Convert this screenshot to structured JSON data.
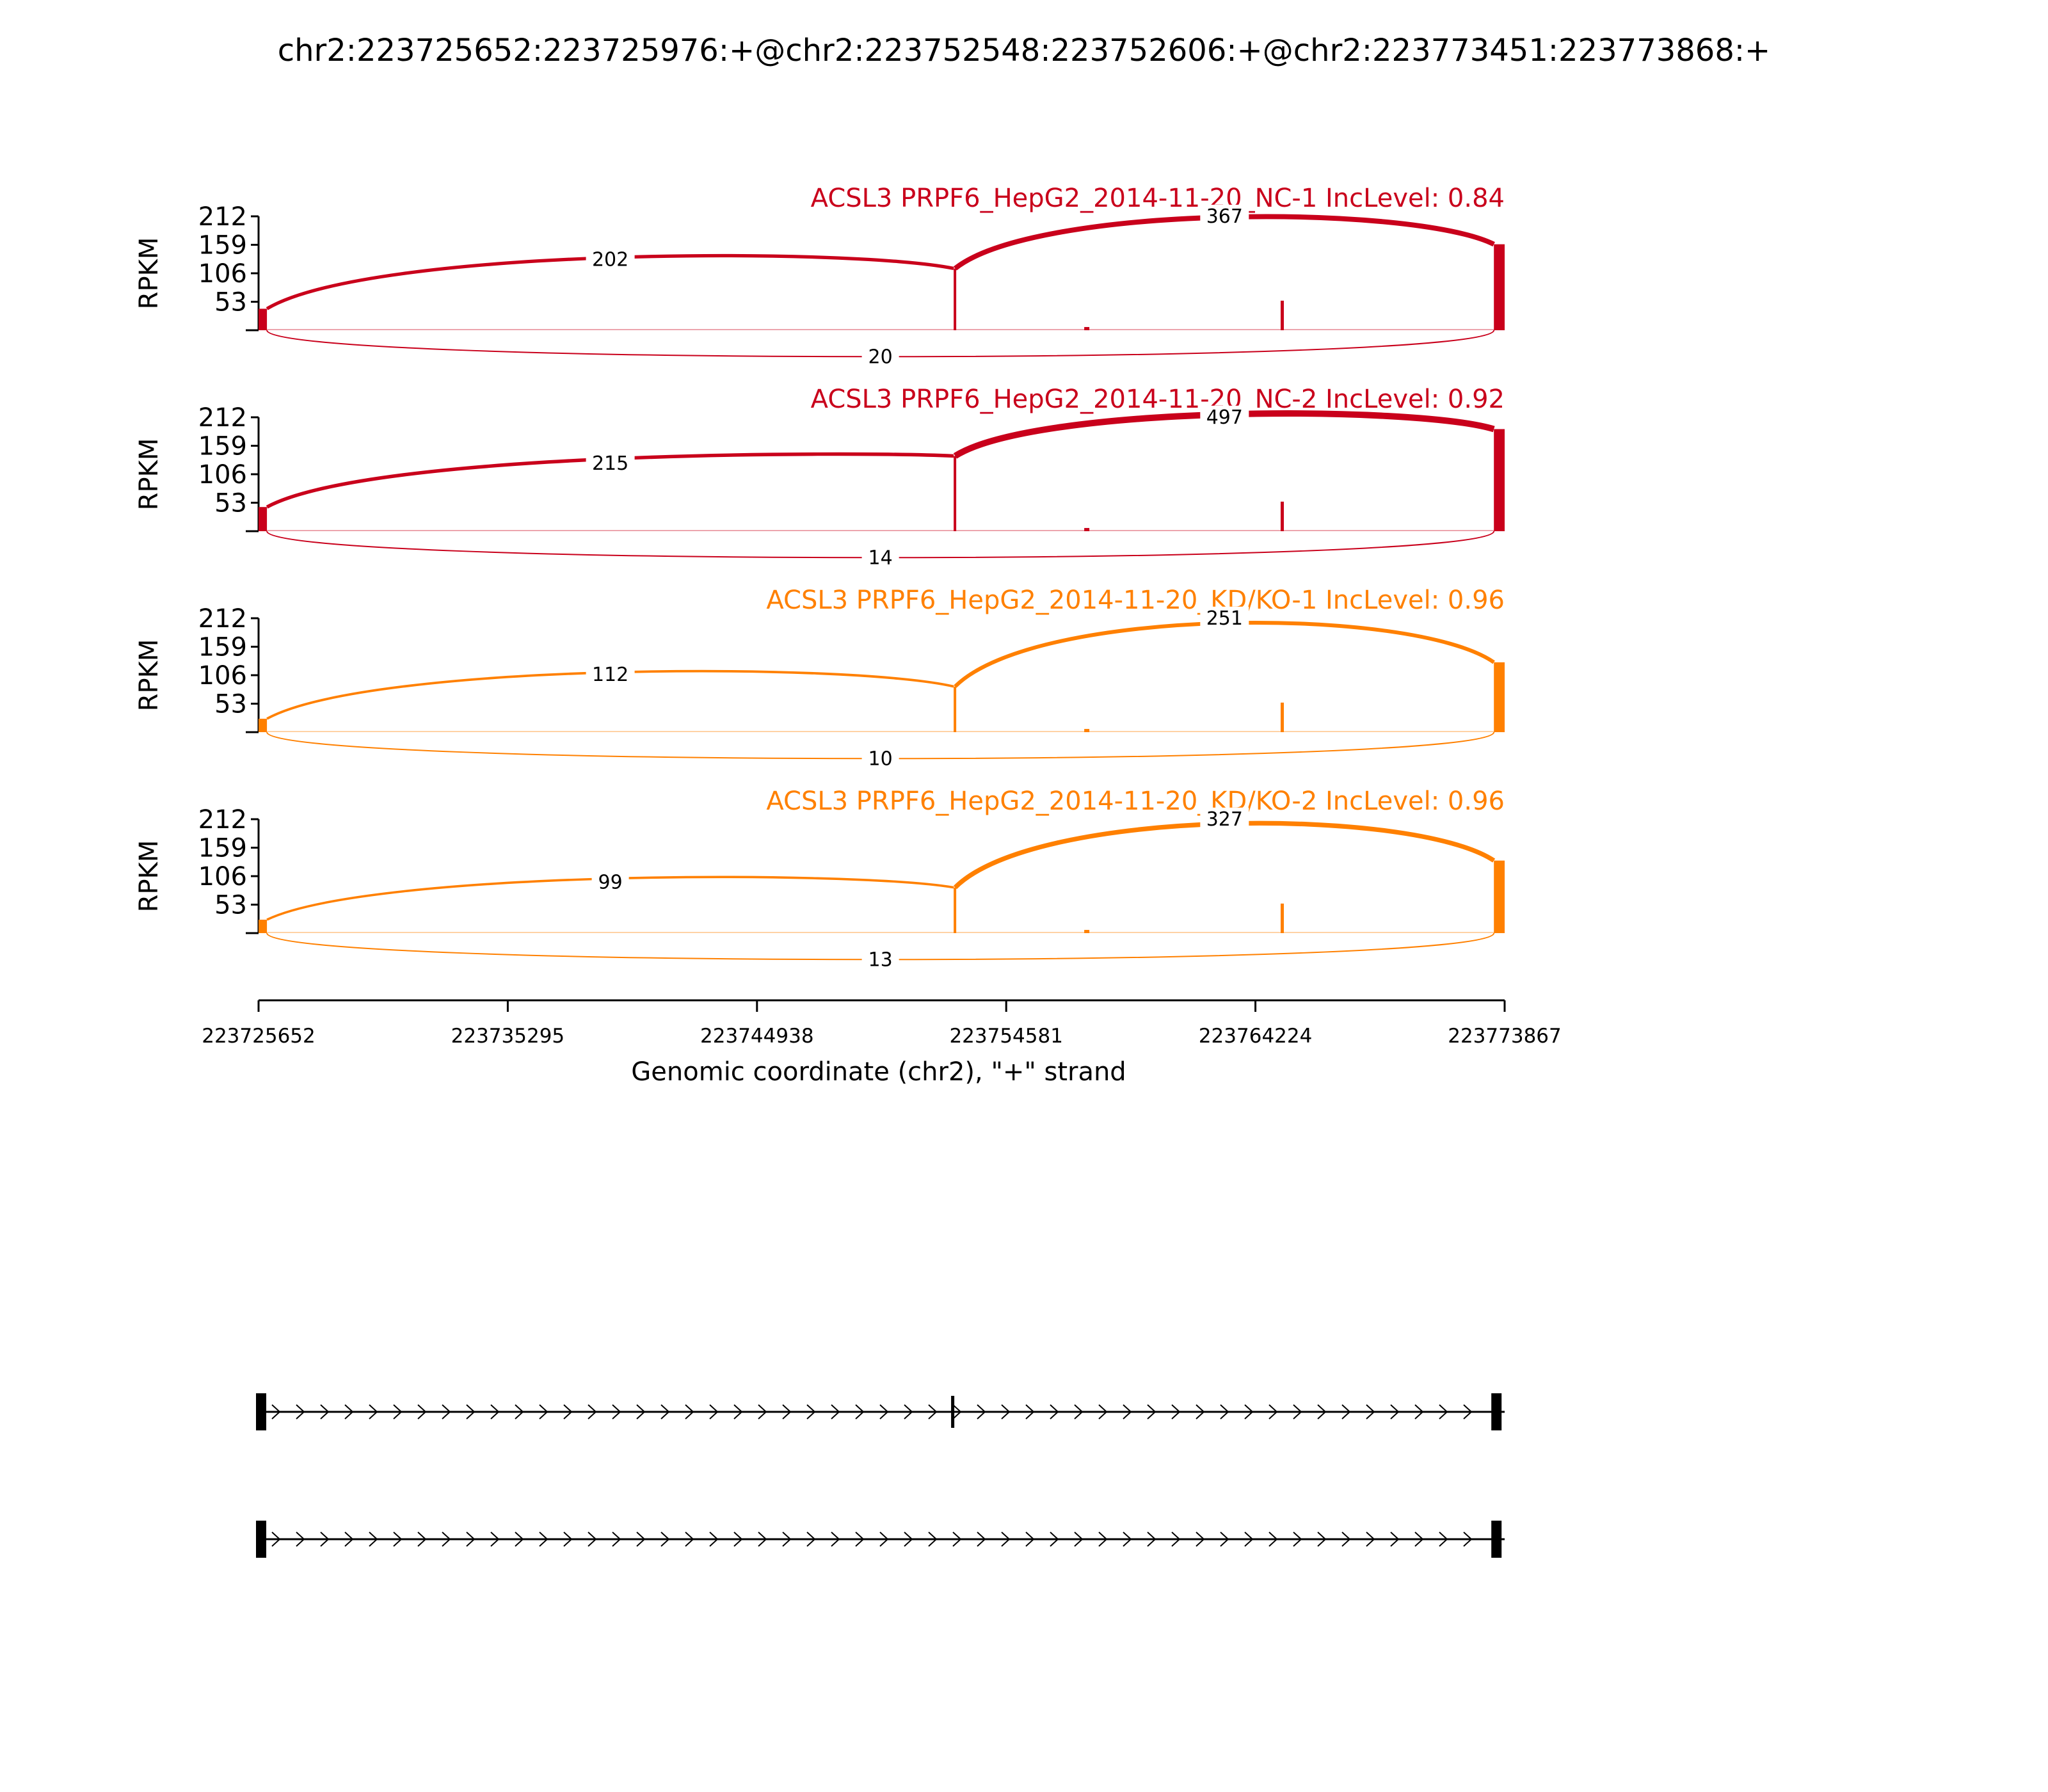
{
  "chart_data": {
    "type": "sashimi",
    "title": "chr2:223725652:223725976:+@chr2:223752548:223752606:+@chr2:223773451:223773868:+",
    "xlabel": "Genomic coordinate (chr2), \"+\" strand",
    "xlim": [
      223725652,
      223773867
    ],
    "xticks": [
      "223725652",
      "223735295",
      "223744938",
      "223754581",
      "223764224",
      "223773867"
    ],
    "ylabel": "RPKM",
    "yticks": [
      "53",
      "106",
      "159",
      "212"
    ],
    "ylim": [
      0,
      212
    ],
    "exons": [
      {
        "start": 223725652,
        "end": 223725976
      },
      {
        "start": 223752548,
        "end": 223752606
      },
      {
        "start": 223773451,
        "end": 223773868
      }
    ],
    "samples": [
      {
        "label": "ACSL3 PRPF6_HepG2_2014-11-20_NC-1 IncLevel: 0.84",
        "color": "#c9001b",
        "coverage": {
          "exon1_rpkm": 40,
          "exon2_rpkm": 115,
          "exon3_rpkm": 160
        },
        "junctions": [
          {
            "from": 223725976,
            "to": 223752548,
            "reads": "202"
          },
          {
            "from": 223752606,
            "to": 223773451,
            "reads": "367"
          },
          {
            "from": 223725976,
            "to": 223773451,
            "reads": "20"
          }
        ]
      },
      {
        "label": "ACSL3 PRPF6_HepG2_2014-11-20_NC-2 IncLevel: 0.92",
        "color": "#c9001b",
        "coverage": {
          "exon1_rpkm": 45,
          "exon2_rpkm": 140,
          "exon3_rpkm": 190
        },
        "junctions": [
          {
            "from": 223725976,
            "to": 223752548,
            "reads": "215"
          },
          {
            "from": 223752606,
            "to": 223773451,
            "reads": "497"
          },
          {
            "from": 223725976,
            "to": 223773451,
            "reads": "14"
          }
        ]
      },
      {
        "label": "ACSL3 PRPF6_HepG2_2014-11-20_KD/KO-1 IncLevel: 0.96",
        "color": "#ff8000",
        "coverage": {
          "exon1_rpkm": 25,
          "exon2_rpkm": 85,
          "exon3_rpkm": 130
        },
        "junctions": [
          {
            "from": 223725976,
            "to": 223752548,
            "reads": "112"
          },
          {
            "from": 223752606,
            "to": 223773451,
            "reads": "251"
          },
          {
            "from": 223725976,
            "to": 223773451,
            "reads": "10"
          }
        ]
      },
      {
        "label": "ACSL3 PRPF6_HepG2_2014-11-20_KD/KO-2 IncLevel: 0.96",
        "color": "#ff8000",
        "coverage": {
          "exon1_rpkm": 25,
          "exon2_rpkm": 85,
          "exon3_rpkm": 135
        },
        "junctions": [
          {
            "from": 223725976,
            "to": 223752548,
            "reads": "99"
          },
          {
            "from": 223752606,
            "to": 223773451,
            "reads": "327"
          },
          {
            "from": 223725976,
            "to": 223773451,
            "reads": "13"
          }
        ]
      }
    ],
    "isoforms": [
      {
        "exons": [
          [
            223725652,
            223725976
          ],
          [
            223752548,
            223752606
          ],
          [
            223773451,
            223773868
          ]
        ]
      },
      {
        "exons": [
          [
            223725652,
            223725976
          ],
          [
            223773451,
            223773868
          ]
        ]
      }
    ]
  }
}
